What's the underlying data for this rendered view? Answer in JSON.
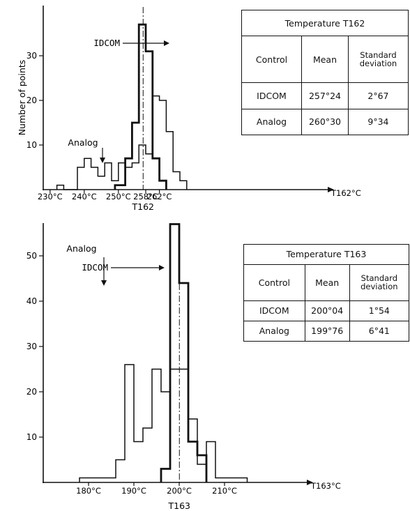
{
  "charts": [
    {
      "id": "t162",
      "ylabel": "Number of points",
      "xlabel": "T162",
      "axis_end_label": "T162°C",
      "idcom_label": "IDCOM",
      "analog_label": "Analog",
      "y_ticks": [
        "10",
        "20",
        "30"
      ],
      "x_ticks": [
        "230°C",
        "240°C",
        "250°C",
        "258°C",
        "262°C"
      ],
      "table": {
        "title": "Temperature T162",
        "headers": [
          "Control",
          "Mean",
          "Standard deviation"
        ],
        "rows": [
          {
            "control": "IDCOM",
            "mean": "257°24",
            "sd": "2°67"
          },
          {
            "control": "Analog",
            "mean": "260°30",
            "sd": "9°34"
          }
        ]
      }
    },
    {
      "id": "t163",
      "ylabel": "",
      "xlabel": "T163",
      "axis_end_label": "T163°C",
      "idcom_label": "IDCOM",
      "analog_label": "Analog",
      "y_ticks": [
        "10",
        "20",
        "30",
        "40",
        "50"
      ],
      "x_ticks": [
        "180°C",
        "190°C",
        "200°C",
        "210°C"
      ],
      "table": {
        "title": "Temperature T163",
        "headers": [
          "Control",
          "Mean",
          "Standard deviation"
        ],
        "rows": [
          {
            "control": "IDCOM",
            "mean": "200°04",
            "sd": "1°54"
          },
          {
            "control": "Analog",
            "mean": "199°76",
            "sd": "6°41"
          }
        ]
      }
    }
  ],
  "chart_data": [
    {
      "type": "histogram",
      "xlabel": "T162",
      "ylabel": "Number of points",
      "unit": "°C",
      "ylim": [
        0,
        40
      ],
      "xlim": [
        228,
        272
      ],
      "tick_positions": [
        230,
        240,
        250,
        258,
        262
      ],
      "tick_labels": [
        "230°C",
        "240°C",
        "250°C",
        "258°C",
        "262°C"
      ],
      "mean_marker": 257.24,
      "series": [
        {
          "name": "IDCOM",
          "bin_edges": [
            249,
            252,
            254,
            256,
            258,
            260,
            262,
            264
          ],
          "values": [
            1,
            7,
            15,
            37,
            31,
            7,
            2
          ]
        },
        {
          "name": "Analog",
          "bin_edges": [
            232,
            234,
            238,
            240,
            242,
            244,
            246,
            248,
            250,
            252,
            254,
            256,
            258,
            260,
            262,
            264,
            266,
            268,
            270
          ],
          "values": [
            1,
            0,
            5,
            7,
            5,
            3,
            6,
            2,
            6,
            5,
            6,
            10,
            8,
            21,
            20,
            13,
            4,
            2
          ]
        }
      ]
    },
    {
      "type": "histogram",
      "xlabel": "T163",
      "unit": "°C",
      "ylim": [
        0,
        58
      ],
      "xlim": [
        170,
        225
      ],
      "tick_positions": [
        180,
        190,
        200,
        210
      ],
      "tick_labels": [
        "180°C",
        "190°C",
        "200°C",
        "210°C"
      ],
      "mean_marker": 200.04,
      "series": [
        {
          "name": "IDCOM",
          "bin_edges": [
            196,
            198,
            200,
            202,
            204,
            206
          ],
          "values": [
            3,
            57,
            44,
            9,
            6
          ]
        },
        {
          "name": "Analog",
          "bin_edges": [
            178,
            186,
            188,
            190,
            192,
            194,
            196,
            198,
            200,
            202,
            204,
            206,
            208,
            210,
            212,
            215
          ],
          "values": [
            1,
            5,
            26,
            9,
            12,
            25,
            20,
            25,
            25,
            14,
            4,
            9,
            1,
            1,
            1
          ]
        }
      ]
    }
  ]
}
